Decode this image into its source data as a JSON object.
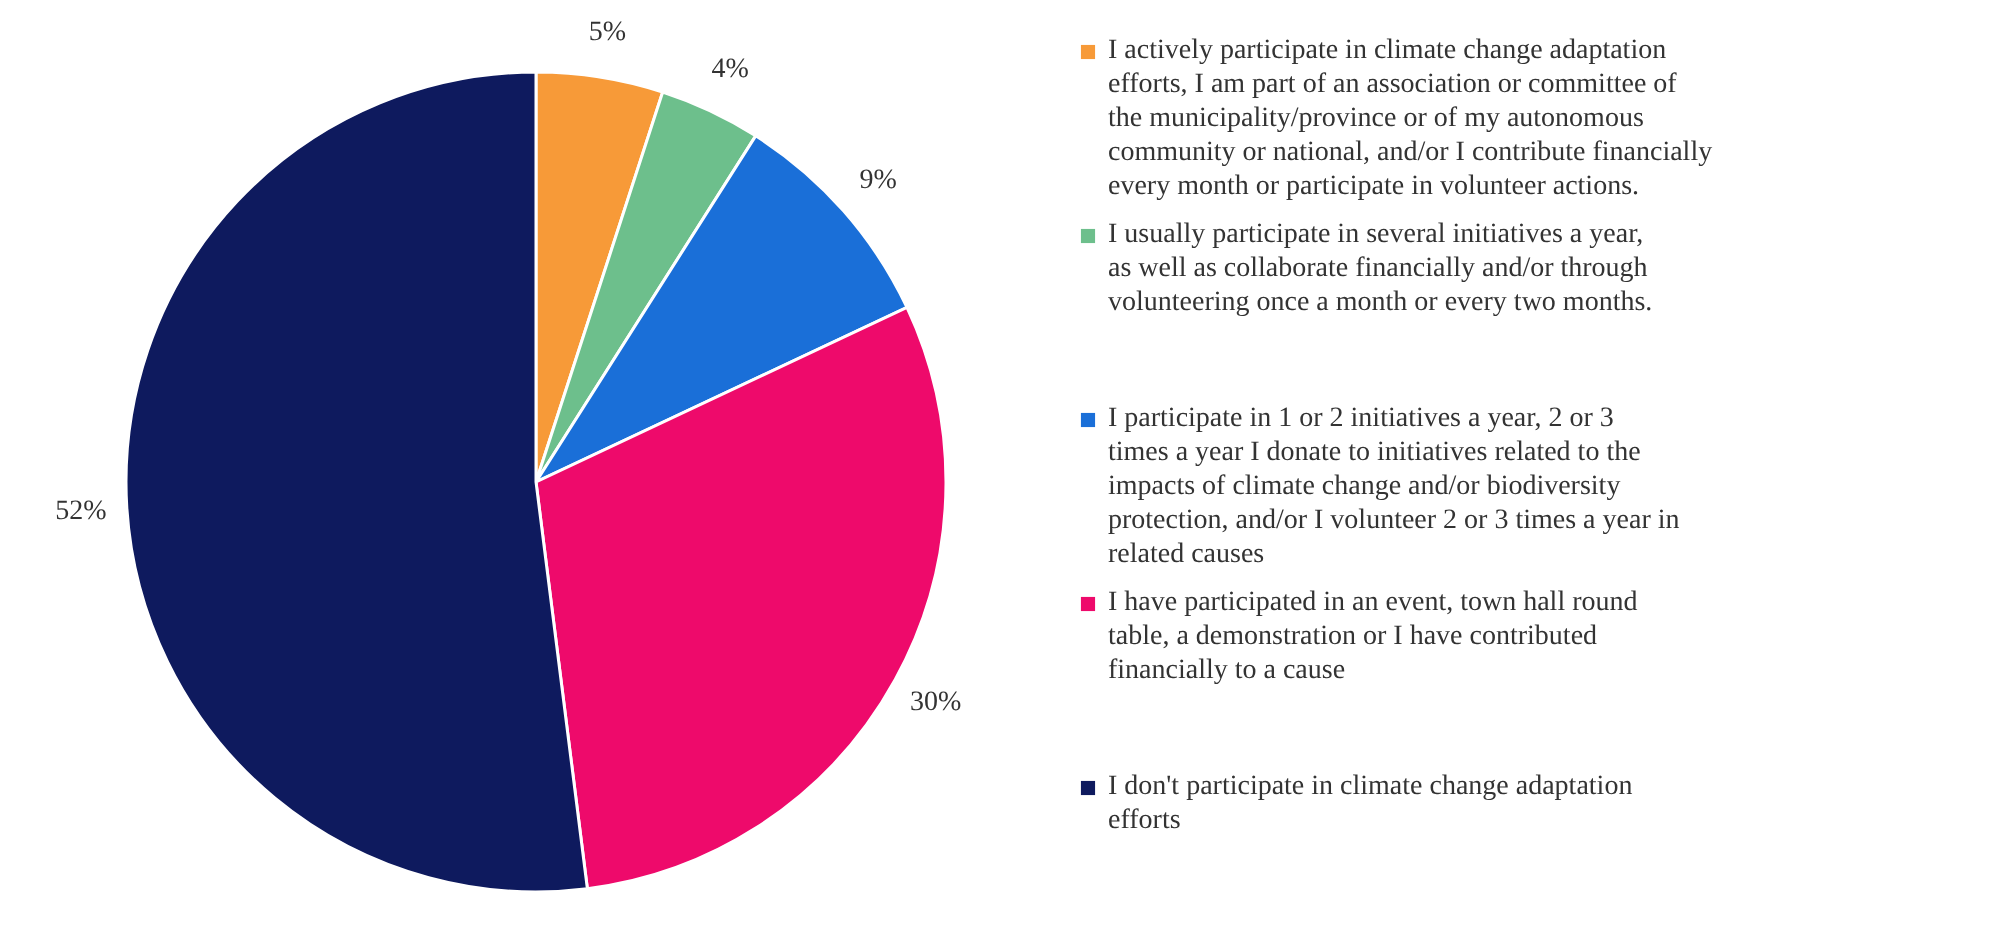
{
  "chart_data": {
    "type": "pie",
    "categories": [
      "I actively participate in climate change adaptation efforts, I am part of an association or committee of the municipality/province or of my autonomous community or national, and/or I contribute financially every month or participate in volunteer actions.",
      "I usually participate in several initiatives a year, as well as collaborate financially and/or through volunteering once a month or every two months.",
      "I participate in 1 or 2 initiatives a year, 2 or 3 times a year I donate to initiatives related to the impacts of climate change and/or biodiversity protection, and/or I volunteer 2 or 3 times a year in related causes",
      "I have participated in an event, town hall round table, a demonstration or I have contributed financially to a cause",
      "I don't participate in climate change adaptation efforts"
    ],
    "values": [
      5,
      4,
      9,
      30,
      52
    ],
    "value_labels": [
      "5%",
      "4%",
      "9%",
      "30%",
      "52%"
    ],
    "colors": [
      "#f79a38",
      "#6dbf8c",
      "#1a6fd8",
      "#ee0a6b",
      "#0e1a5e"
    ],
    "legend": "right"
  }
}
